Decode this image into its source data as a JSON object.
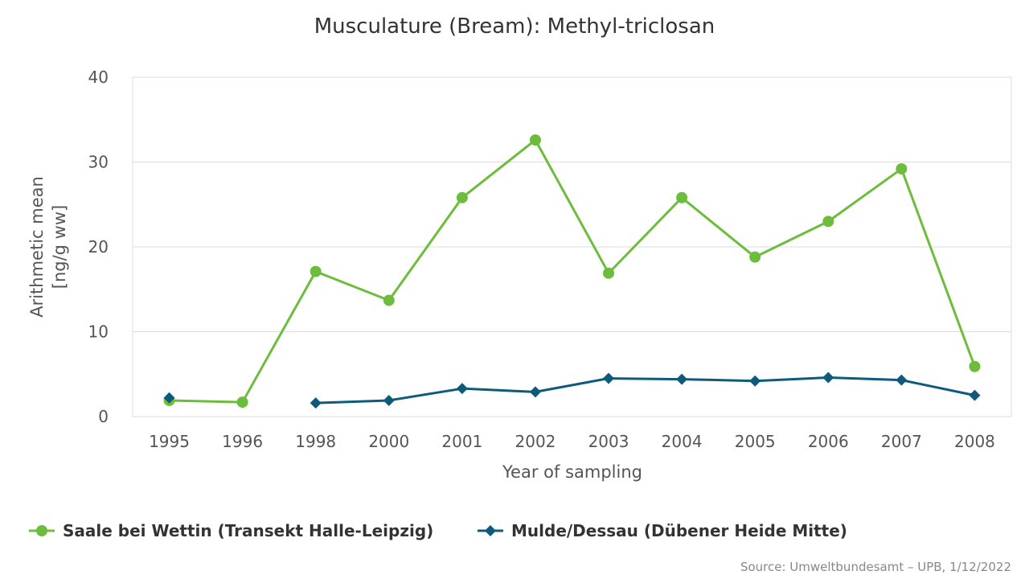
{
  "chart_data": {
    "type": "line",
    "title": "Musculature (Bream): Methyl-triclosan",
    "xlabel": "Year of sampling",
    "ylabel_lines": [
      "Arithmetic mean",
      "[ng/g ww]"
    ],
    "categories": [
      "1995",
      "1996",
      "1998",
      "2000",
      "2001",
      "2002",
      "2003",
      "2004",
      "2005",
      "2006",
      "2007",
      "2008"
    ],
    "ylim": [
      0,
      40
    ],
    "yticks": [
      "0",
      "10",
      "20",
      "30",
      "40"
    ],
    "grid": true,
    "legend_position": "bottom-left",
    "series": [
      {
        "name": "Saale bei Wettin (Transekt Halle-Leipzig)",
        "color": "#6cbd3b",
        "marker": "circle",
        "values": [
          1.9,
          1.7,
          17.1,
          13.7,
          25.8,
          32.6,
          16.9,
          25.8,
          18.8,
          23.0,
          29.2,
          5.9
        ]
      },
      {
        "name": "Mulde/Dessau (Dübener Heide Mitte)",
        "color": "#0e5a7d",
        "marker": "diamond",
        "values": [
          2.2,
          null,
          1.6,
          1.9,
          3.3,
          2.9,
          4.5,
          4.4,
          4.2,
          4.6,
          4.3,
          2.5
        ]
      }
    ],
    "source": "Source: Umweltbundesamt – UPB, 1/12/2022"
  }
}
